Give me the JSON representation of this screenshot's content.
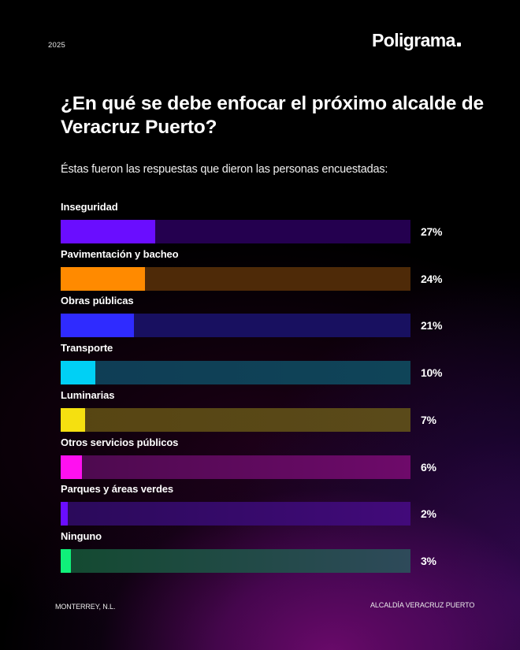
{
  "header": {
    "year": "2025",
    "brand": "Poligrama"
  },
  "title": "¿En qué se debe enfocar el próximo alcalde de Veracruz Puerto?",
  "subtitle": "Éstas fueron las respuestas que dieron las personas encuestadas:",
  "footer": {
    "left": "MONTERREY, N.L.",
    "right": "ALCALDÍA VERACRUZ PUERTO"
  },
  "chart_data": {
    "type": "bar",
    "orientation": "horizontal",
    "title": "¿En qué se debe enfocar el próximo alcalde de Veracruz Puerto?",
    "subtitle": "Éstas fueron las respuestas que dieron las personas encuestadas:",
    "xlabel": "",
    "ylabel": "",
    "xlim": [
      0,
      100
    ],
    "unit": "%",
    "grid": false,
    "legend": "none",
    "categories": [
      "Inseguridad",
      "Pavimentación y bacheo",
      "Obras públicas",
      "Transporte",
      "Luminarias",
      "Otros servicios públicos",
      "Parques y áreas verdes",
      "Ninguno"
    ],
    "values": [
      27,
      24,
      21,
      10,
      7,
      6,
      2,
      3
    ],
    "value_labels": [
      "27%",
      "24%",
      "21%",
      "10%",
      "7%",
      "6%",
      "2%",
      "3%"
    ],
    "colors": [
      "#6a0dff",
      "#ff8a00",
      "#2f2bff",
      "#00d0f5",
      "#f5e010",
      "#ff10f0",
      "#6a0dff",
      "#10f07a"
    ],
    "track_colors": [
      [
        "#24004f",
        "#24004f"
      ],
      [
        "#4e2a08",
        "#4e2a08"
      ],
      [
        "#181060",
        "#181060"
      ],
      [
        "#0f3d55",
        "#0f4458"
      ],
      [
        "#574512",
        "#5a4a1a"
      ],
      [
        "#4c0a4e",
        "#6e0a6a"
      ],
      [
        "#2a0a5a",
        "#420a7a"
      ],
      [
        "#134a30",
        "#2e4a5a"
      ]
    ]
  }
}
